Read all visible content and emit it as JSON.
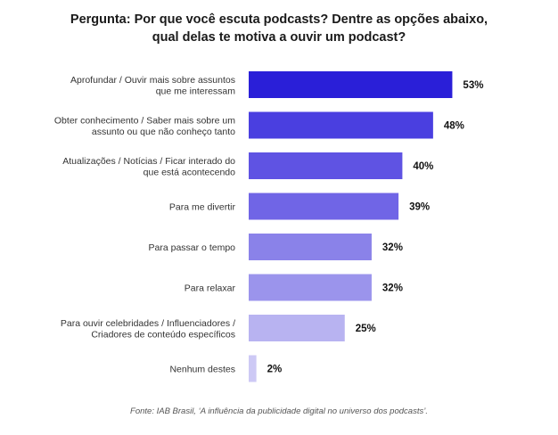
{
  "title_lines": [
    "Pergunta: Por que você escuta podcasts? Dentre as opções abaixo,",
    "qual delas te motiva a ouvir um podcast?"
  ],
  "source": "Fonte: IAB Brasil, ‘A influência da publicidade digital no universo dos podcasts’.",
  "chart_data": {
    "type": "bar",
    "orientation": "horizontal",
    "title": "Pergunta: Por que você escuta podcasts? Dentre as opções abaixo, qual delas te motiva a ouvir um podcast?",
    "categories": [
      [
        "Aprofundar / Ouvir mais sobre assuntos",
        "que me interessam"
      ],
      [
        "Obter conhecimento / Saber mais sobre um",
        "assunto ou que não conheço tanto"
      ],
      [
        "Atualizações / Notícias / Ficar interado do",
        "que está acontecendo"
      ],
      [
        "Para me divertir"
      ],
      [
        "Para passar o tempo"
      ],
      [
        "Para relaxar"
      ],
      [
        "Para ouvir celebridades / Influenciadores /",
        "Criadores de conteúdo específicos"
      ],
      [
        "Nenhum destes"
      ]
    ],
    "values": [
      53,
      48,
      40,
      39,
      32,
      32,
      25,
      2
    ],
    "value_labels": [
      "53%",
      "48%",
      "40%",
      "39%",
      "32%",
      "32%",
      "25%",
      "2%"
    ],
    "colors": [
      "#2a1fd8",
      "#4a3fe0",
      "#5f53e3",
      "#7065e6",
      "#8a82e9",
      "#9b94ec",
      "#b8b3f1",
      "#cdc9f5"
    ],
    "xlim": [
      0,
      100
    ],
    "grid": false,
    "legend": "none"
  }
}
